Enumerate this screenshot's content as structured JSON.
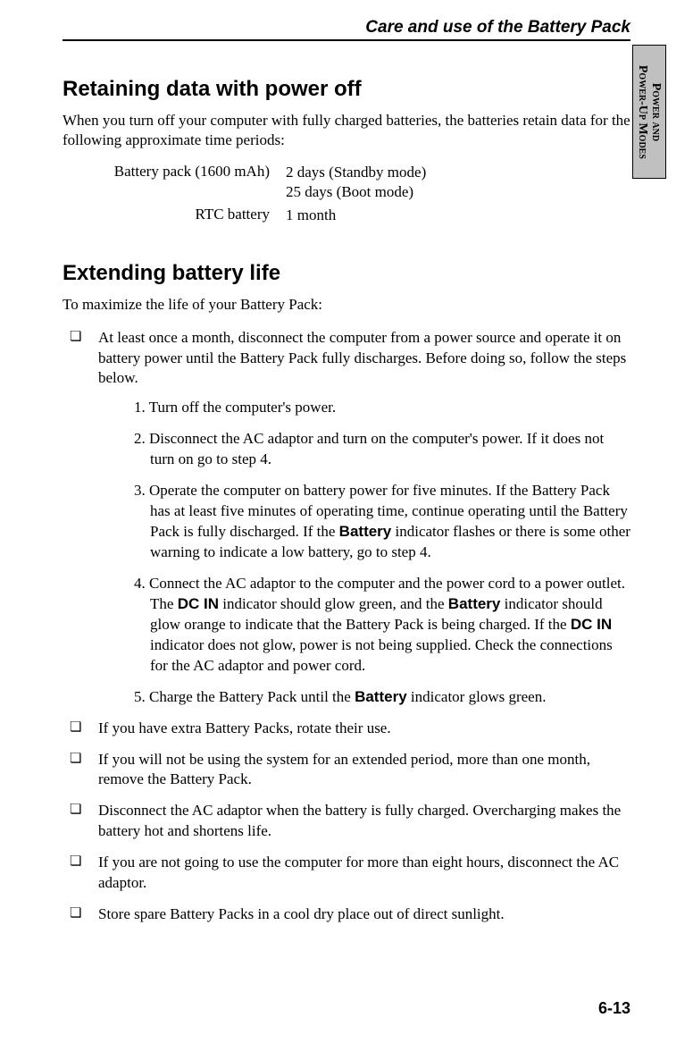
{
  "header": {
    "chapter_title": "Care and use of the Battery Pack"
  },
  "side_tab": {
    "line1": "Power and",
    "line2": "Power-Up Modes"
  },
  "section1": {
    "heading": "Retaining data with power off",
    "intro": "When you turn off your computer with fully charged batteries, the batteries retain data for the following approximate time periods:",
    "rows": [
      {
        "label": "Battery pack (1600 mAh)",
        "value_line1": "2 days (Standby mode)",
        "value_line2": "25 days (Boot mode)"
      },
      {
        "label": "RTC battery",
        "value_line1": "1 month",
        "value_line2": ""
      }
    ]
  },
  "section2": {
    "heading": "Extending battery life",
    "intro": "To maximize the life of your Battery Pack:",
    "bullet1_text": "At least once a month, disconnect the computer from a power source and operate it on battery power until the Battery Pack fully discharges. Before doing so, follow the steps below.",
    "steps": {
      "s1": "1. Turn off the computer's power.",
      "s2": "2. Disconnect the AC adaptor and turn on the computer's power. If it does not turn on go to step 4.",
      "s3_a": "3. Operate the computer on battery power for five minutes. If the Battery Pack has at least five minutes of operating time, continue operating until the Battery Pack is fully discharged. If the ",
      "s3_bold1": "Battery",
      "s3_b": " indicator flashes or there is some other warning to indicate a low battery, go to step 4.",
      "s4_a": "4. Connect the AC adaptor to the computer and the power cord to a power outlet. The ",
      "s4_bold1": "DC IN",
      "s4_b": " indicator should glow green, and the ",
      "s4_bold2": "Battery",
      "s4_c": " indicator should glow orange to indicate that the Battery Pack is being charged. If the ",
      "s4_bold3": "DC IN",
      "s4_d": " indicator does not glow, power is not being supplied. Check the connections for the AC adaptor and power cord.",
      "s5_a": "5. Charge the Battery Pack until the ",
      "s5_bold1": "Battery",
      "s5_b": " indicator glows green."
    },
    "bullets_rest": [
      "If you have extra Battery Packs, rotate their use.",
      "If you will not be using the system for an extended period, more than one month, remove the Battery Pack.",
      "Disconnect the AC adaptor when the battery is fully charged. Overcharging makes the battery hot and shortens life.",
      "If you are not going to use the computer for more than eight hours, disconnect the AC adaptor.",
      "Store spare Battery Packs in a cool dry place out of direct sunlight."
    ]
  },
  "footer": {
    "page_number": "6-13"
  }
}
